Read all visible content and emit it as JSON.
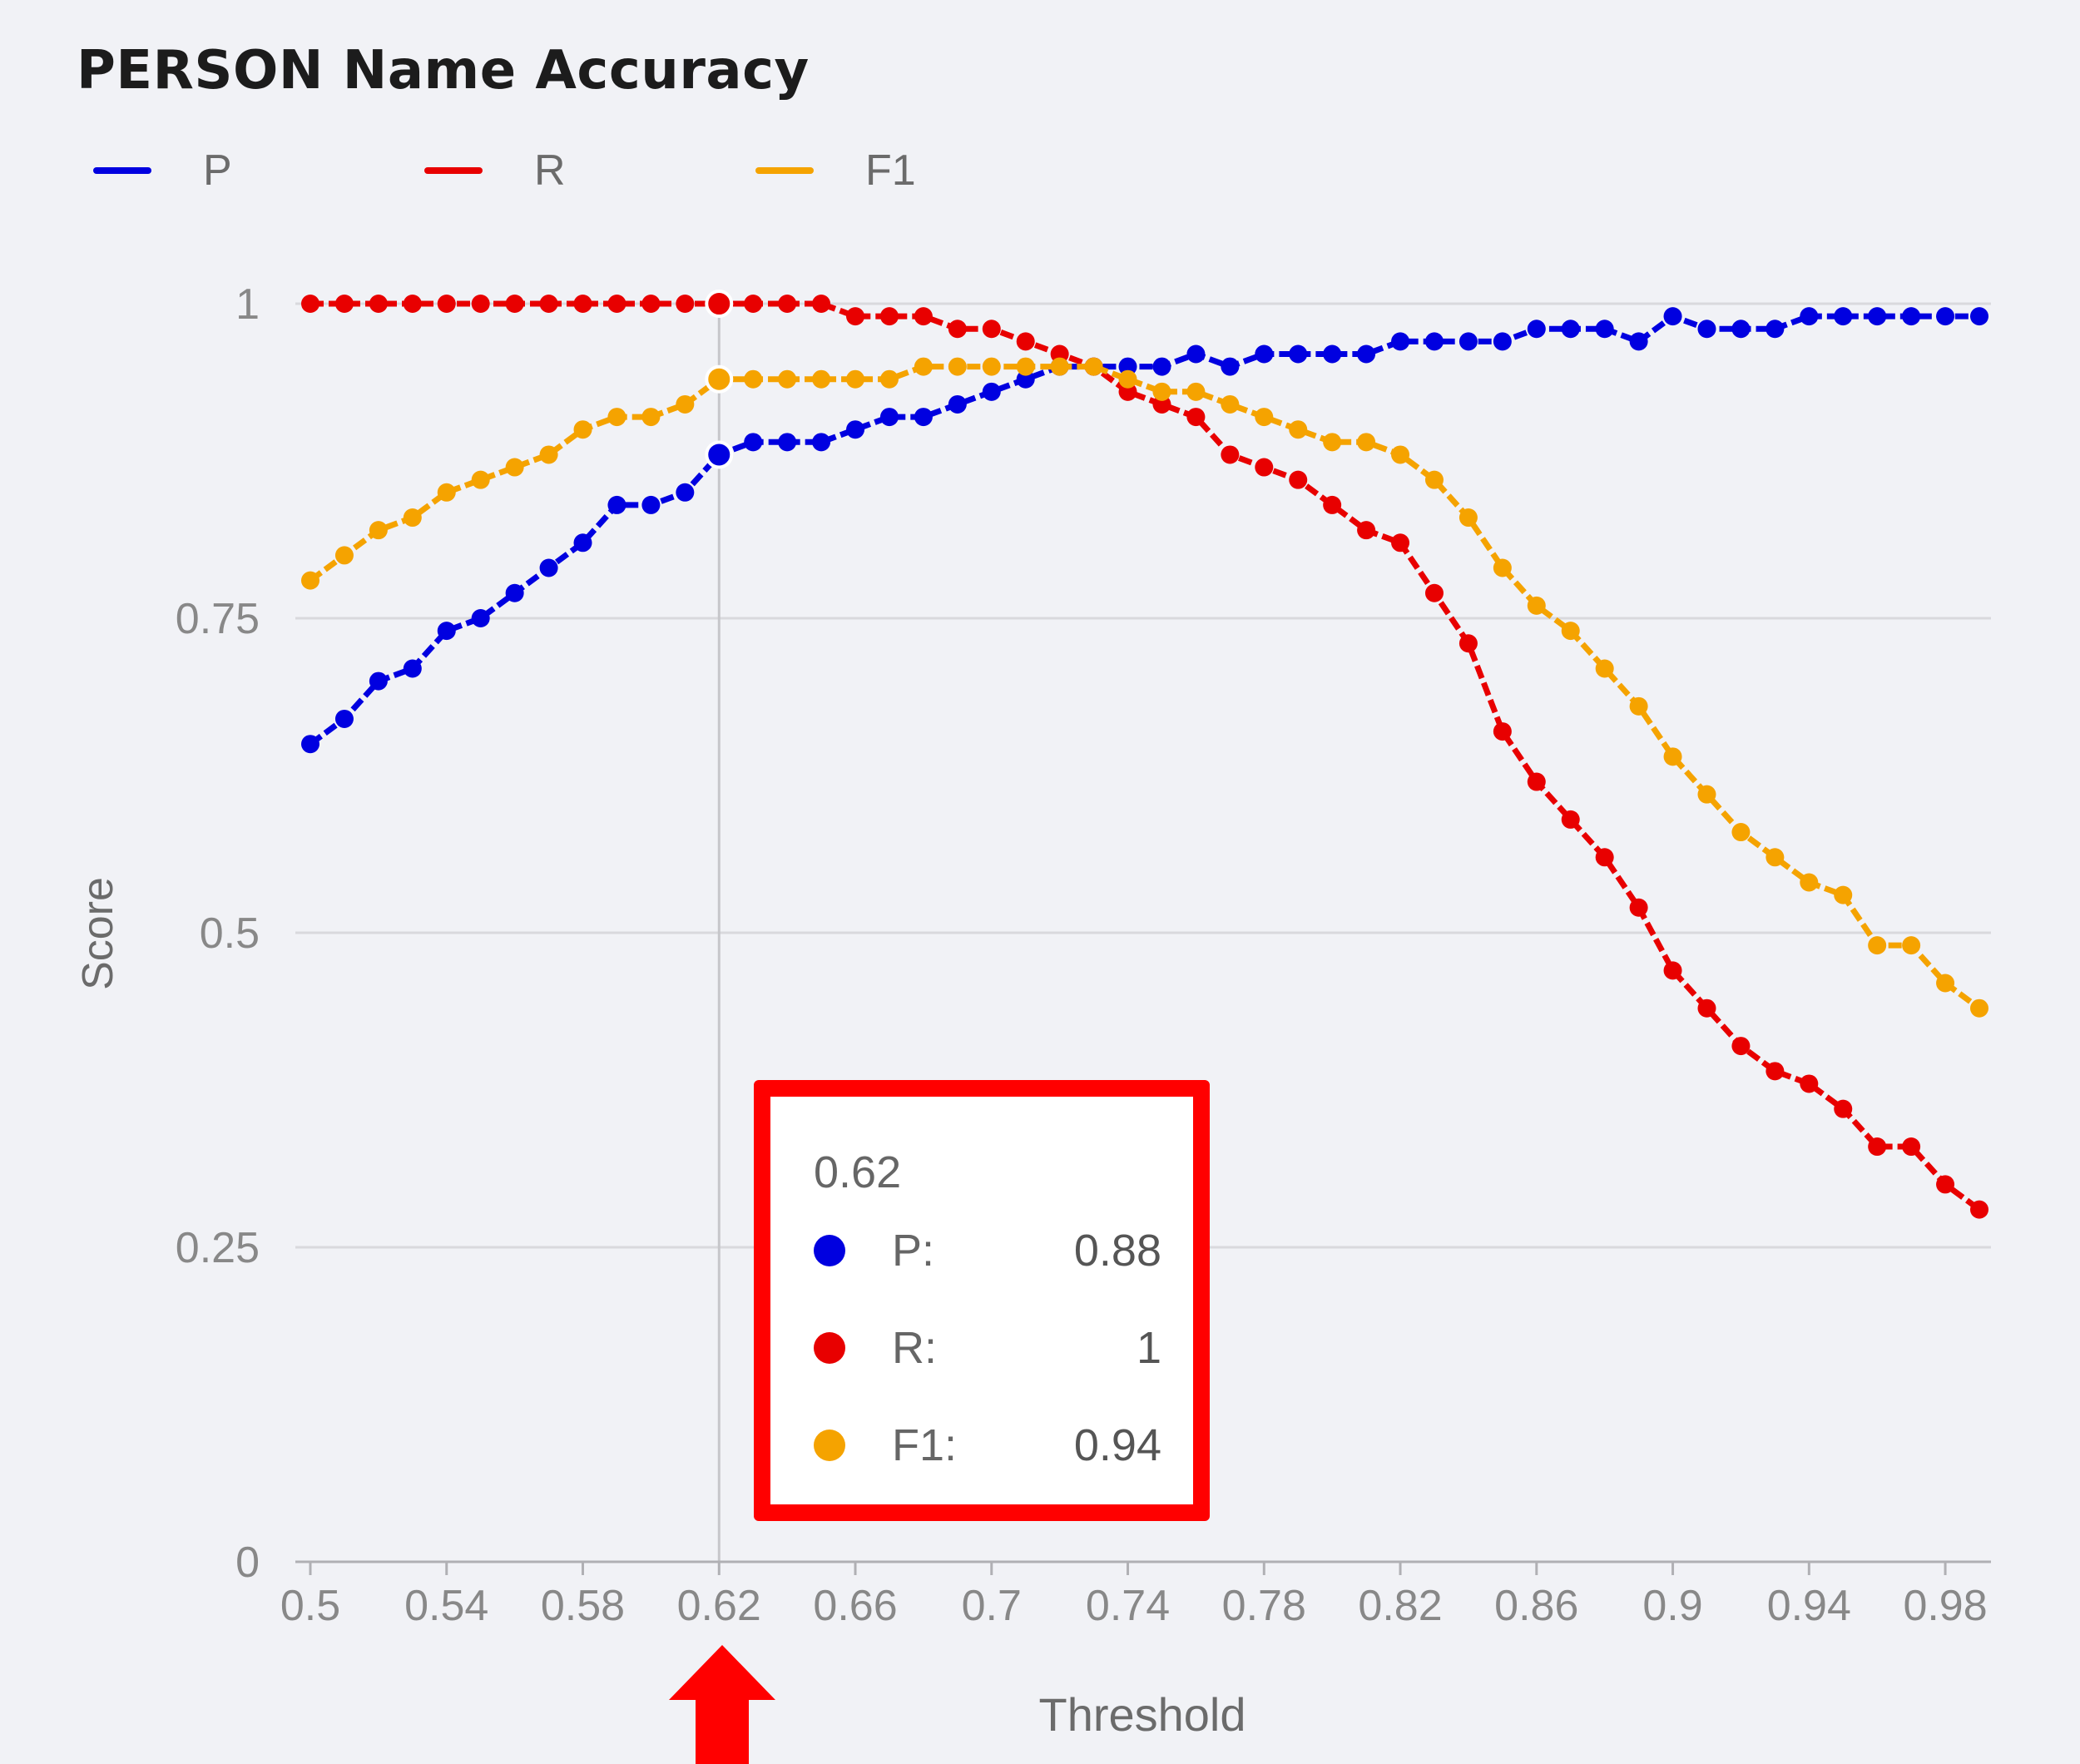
{
  "chart_data": {
    "type": "line",
    "title": "PERSON Name Accuracy",
    "xlabel": "Threshold",
    "ylabel": "Score",
    "xlim": [
      0.5,
      0.99
    ],
    "ylim": [
      0,
      1
    ],
    "x_ticks": [
      "0.5",
      "0.54",
      "0.58",
      "0.62",
      "0.66",
      "0.7",
      "0.74",
      "0.78",
      "0.82",
      "0.86",
      "0.9",
      "0.94",
      "0.98"
    ],
    "y_ticks": [
      "0",
      "0.25",
      "0.5",
      "0.75",
      "1"
    ],
    "grid": "horizontal",
    "legend_position": "top-left",
    "x": [
      0.5,
      0.51,
      0.52,
      0.53,
      0.54,
      0.55,
      0.56,
      0.57,
      0.58,
      0.59,
      0.6,
      0.61,
      0.62,
      0.63,
      0.64,
      0.65,
      0.66,
      0.67,
      0.68,
      0.69,
      0.7,
      0.71,
      0.72,
      0.73,
      0.74,
      0.75,
      0.76,
      0.77,
      0.78,
      0.79,
      0.8,
      0.81,
      0.82,
      0.83,
      0.84,
      0.85,
      0.86,
      0.87,
      0.88,
      0.89,
      0.9,
      0.91,
      0.92,
      0.93,
      0.94,
      0.95,
      0.96,
      0.97,
      0.98,
      0.99
    ],
    "series": [
      {
        "name": "P",
        "color": "#0000e0",
        "values": [
          0.65,
          0.67,
          0.7,
          0.71,
          0.74,
          0.75,
          0.77,
          0.79,
          0.81,
          0.84,
          0.84,
          0.85,
          0.88,
          0.89,
          0.89,
          0.89,
          0.9,
          0.91,
          0.91,
          0.92,
          0.93,
          0.94,
          0.95,
          0.95,
          0.95,
          0.95,
          0.96,
          0.95,
          0.96,
          0.96,
          0.96,
          0.96,
          0.97,
          0.97,
          0.97,
          0.97,
          0.98,
          0.98,
          0.98,
          0.97,
          0.99,
          0.98,
          0.98,
          0.98,
          0.99,
          0.99,
          0.99,
          0.99,
          0.99,
          0.99
        ]
      },
      {
        "name": "R",
        "color": "#e80000",
        "values": [
          1,
          1,
          1,
          1,
          1,
          1,
          1,
          1,
          1,
          1,
          1,
          1,
          1,
          1,
          1,
          1,
          0.99,
          0.99,
          0.99,
          0.98,
          0.98,
          0.97,
          0.96,
          0.95,
          0.93,
          0.92,
          0.91,
          0.88,
          0.87,
          0.86,
          0.84,
          0.82,
          0.81,
          0.77,
          0.73,
          0.66,
          0.62,
          0.59,
          0.56,
          0.52,
          0.47,
          0.44,
          0.41,
          0.39,
          0.38,
          0.36,
          0.33,
          0.33,
          0.3,
          0.28
        ]
      },
      {
        "name": "F1",
        "color": "#f5a300",
        "values": [
          0.78,
          0.8,
          0.82,
          0.83,
          0.85,
          0.86,
          0.87,
          0.88,
          0.9,
          0.91,
          0.91,
          0.92,
          0.94,
          0.94,
          0.94,
          0.94,
          0.94,
          0.94,
          0.95,
          0.95,
          0.95,
          0.95,
          0.95,
          0.95,
          0.94,
          0.93,
          0.93,
          0.92,
          0.91,
          0.9,
          0.89,
          0.89,
          0.88,
          0.86,
          0.83,
          0.79,
          0.76,
          0.74,
          0.71,
          0.68,
          0.64,
          0.61,
          0.58,
          0.56,
          0.54,
          0.53,
          0.49,
          0.49,
          0.46,
          0.44
        ]
      }
    ],
    "highlight_x": 0.62
  },
  "tooltip": {
    "header": "0.62",
    "rows": [
      {
        "name": "P:",
        "value": "0.88",
        "color": "#0000e0"
      },
      {
        "name": "R:",
        "value": "1",
        "color": "#e80000"
      },
      {
        "name": "F1:",
        "value": "0.94",
        "color": "#f5a300"
      }
    ],
    "highlight_color": "#ff0000"
  },
  "colors": {
    "background": "#f1f2f6",
    "grid": "#d9d9dd",
    "axis": "#b0b0b4",
    "tick_text": "#888888",
    "arrow": "#ff0000"
  },
  "arrow_icon": "up-arrow-icon"
}
